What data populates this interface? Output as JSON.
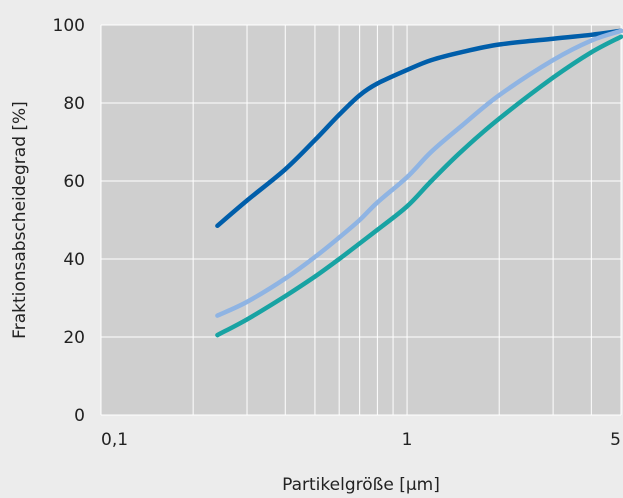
{
  "chart_data": {
    "type": "line",
    "xlabel": "Partikelgröße [µm]",
    "ylabel": "Fraktionsabscheidegrad [%]",
    "x_scale": "log",
    "xlim": [
      0.1,
      5
    ],
    "ylim": [
      0,
      100
    ],
    "x_ticks": [
      {
        "value": 0.1,
        "label": "0,1"
      },
      {
        "value": 1,
        "label": "1"
      },
      {
        "value": 5,
        "label": "5"
      }
    ],
    "y_ticks": [
      {
        "value": 0,
        "label": "0"
      },
      {
        "value": 20,
        "label": "20"
      },
      {
        "value": 40,
        "label": "40"
      },
      {
        "value": 60,
        "label": "60"
      },
      {
        "value": 80,
        "label": "80"
      },
      {
        "value": 100,
        "label": "100"
      }
    ],
    "grid": true,
    "series": [
      {
        "color": "#005eaa",
        "points": [
          [
            0.24,
            48.5
          ],
          [
            0.3,
            55
          ],
          [
            0.4,
            63
          ],
          [
            0.5,
            70.5
          ],
          [
            0.6,
            77
          ],
          [
            0.7,
            82
          ],
          [
            0.8,
            85
          ],
          [
            1.0,
            88.5
          ],
          [
            1.2,
            91
          ],
          [
            1.5,
            93
          ],
          [
            2.0,
            95
          ],
          [
            3.0,
            96.5
          ],
          [
            4.0,
            97.5
          ],
          [
            5.0,
            98.5
          ]
        ]
      },
      {
        "color": "#8fb4e3",
        "points": [
          [
            0.24,
            25.5
          ],
          [
            0.3,
            29
          ],
          [
            0.4,
            35
          ],
          [
            0.5,
            40.5
          ],
          [
            0.6,
            45.5
          ],
          [
            0.7,
            50
          ],
          [
            0.8,
            54.5
          ],
          [
            1.0,
            61
          ],
          [
            1.2,
            67.5
          ],
          [
            1.5,
            74
          ],
          [
            2.0,
            82
          ],
          [
            3.0,
            91
          ],
          [
            4.0,
            96
          ],
          [
            5.0,
            98.5
          ]
        ]
      },
      {
        "color": "#18a3a3",
        "points": [
          [
            0.24,
            20.5
          ],
          [
            0.3,
            24.5
          ],
          [
            0.4,
            30.5
          ],
          [
            0.5,
            35.5
          ],
          [
            0.6,
            40
          ],
          [
            0.7,
            44
          ],
          [
            0.8,
            47.5
          ],
          [
            1.0,
            53.5
          ],
          [
            1.2,
            60
          ],
          [
            1.5,
            67.5
          ],
          [
            2.0,
            76
          ],
          [
            3.0,
            86.5
          ],
          [
            4.0,
            93
          ],
          [
            5.0,
            97
          ]
        ]
      }
    ],
    "colors": {
      "plot_bg": "#cfcfcf",
      "grid": "#ffffff",
      "page_bg": "#ececec"
    }
  }
}
